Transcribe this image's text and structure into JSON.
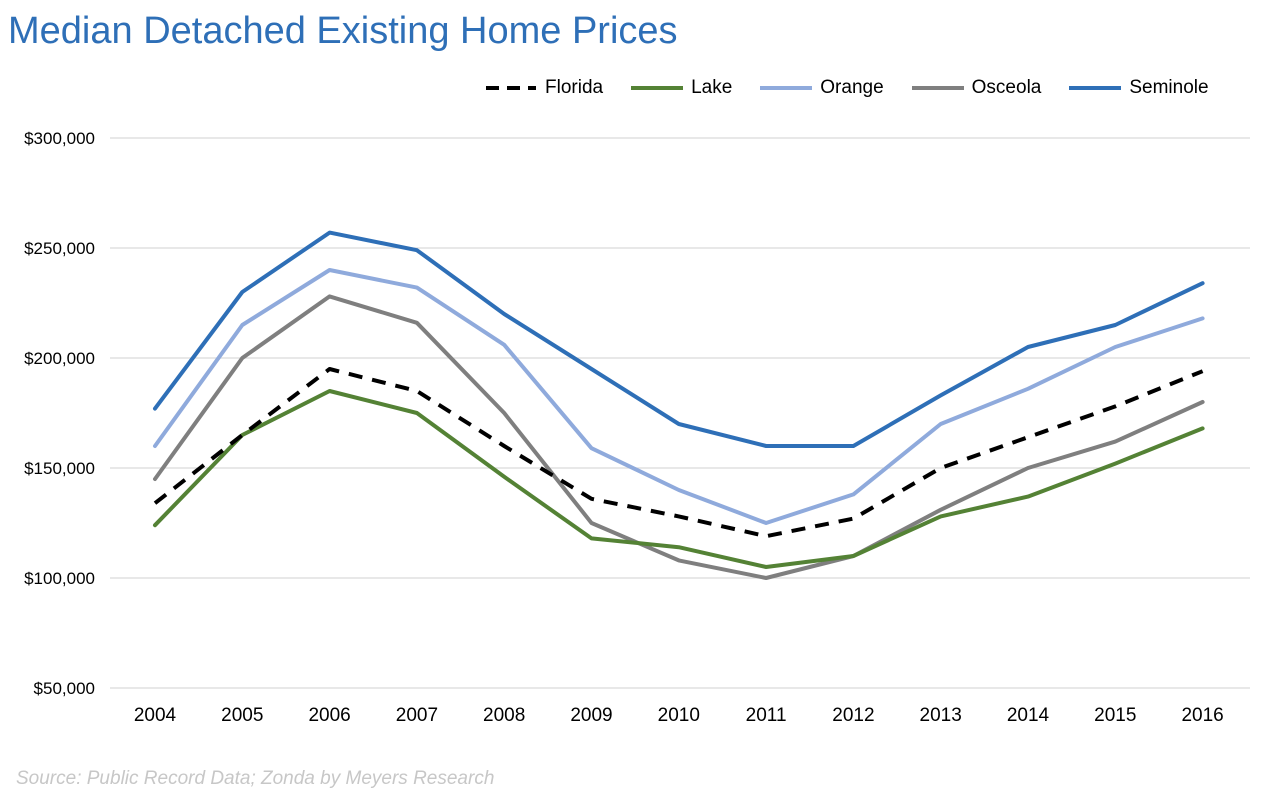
{
  "source": "Source: Public Record Data; Zonda by Meyers Research",
  "chart_data": {
    "type": "line",
    "title": "Median Detached Existing Home Prices",
    "xlabel": "",
    "ylabel": "",
    "x": [
      "2004",
      "2005",
      "2006",
      "2007",
      "2008",
      "2009",
      "2010",
      "2011",
      "2012",
      "2013",
      "2014",
      "2015",
      "2016"
    ],
    "ylim": [
      50000,
      300000
    ],
    "ytick_values": [
      50000,
      100000,
      150000,
      200000,
      250000,
      300000
    ],
    "ytick_labels": [
      "$50,000",
      "$100,000",
      "$150,000",
      "$200,000",
      "$250,000",
      "$300,000"
    ],
    "grid": "horizontal",
    "legend": "top-right",
    "series": [
      {
        "name": "Florida",
        "color": "#000000",
        "dashed": true,
        "values": [
          134000,
          165000,
          195000,
          185000,
          160000,
          136000,
          128000,
          119000,
          127000,
          150000,
          164000,
          178000,
          194000
        ]
      },
      {
        "name": "Lake",
        "color": "#548235",
        "dashed": false,
        "values": [
          124000,
          165000,
          185000,
          175000,
          146000,
          118000,
          114000,
          105000,
          110000,
          128000,
          137000,
          152000,
          168000
        ]
      },
      {
        "name": "Orange",
        "color": "#8faadc",
        "dashed": false,
        "values": [
          160000,
          215000,
          240000,
          232000,
          206000,
          159000,
          140000,
          125000,
          138000,
          170000,
          186000,
          205000,
          218000
        ]
      },
      {
        "name": "Osceola",
        "color": "#7f7f7f",
        "dashed": false,
        "values": [
          145000,
          200000,
          228000,
          216000,
          175000,
          125000,
          108000,
          100000,
          110000,
          131000,
          150000,
          162000,
          180000
        ]
      },
      {
        "name": "Seminole",
        "color": "#2e6fb7",
        "dashed": false,
        "values": [
          177000,
          230000,
          257000,
          249000,
          220000,
          195000,
          170000,
          160000,
          160000,
          183000,
          205000,
          215000,
          234000
        ]
      }
    ]
  }
}
